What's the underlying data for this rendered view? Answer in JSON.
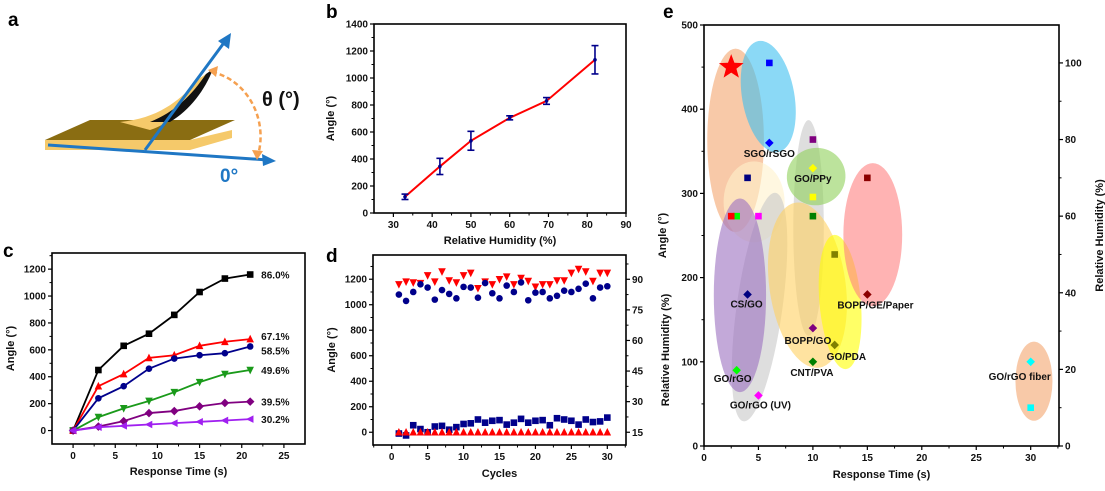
{
  "panel_letters": {
    "a": "a",
    "b": "b",
    "c": "c",
    "d": "d",
    "e": "e"
  },
  "diagram_a": {
    "theta_label": "θ (°)",
    "zero_label": "0°",
    "colors": {
      "film_top": "#9a7a1a",
      "film_edge": "#f5c96a",
      "axis": "#1f77c4",
      "arc": "#f5a050",
      "zero": "#1f77c4"
    }
  },
  "chart_data": [
    {
      "id": "b",
      "type": "line",
      "xlabel": "Relative Humidity (%)",
      "ylabel": "Angle (°)",
      "xlim": [
        25,
        90
      ],
      "ylim": [
        0,
        1400
      ],
      "x_ticks": [
        30,
        40,
        50,
        60,
        70,
        80,
        90
      ],
      "y_ticks": [
        0,
        200,
        400,
        600,
        800,
        1000,
        1200,
        1400
      ],
      "grid": false,
      "series": [
        {
          "x": [
            33,
            42,
            50,
            60,
            69.5,
            82
          ],
          "y": [
            120,
            345,
            535,
            705,
            830,
            1135
          ],
          "error": [
            20,
            60,
            70,
            15,
            25,
            105
          ],
          "line_color": "#ff0000",
          "marker_color": "#00008b"
        }
      ]
    },
    {
      "id": "c",
      "type": "line",
      "xlabel": "Response Time (s)",
      "ylabel": "Angle (°)",
      "xlim": [
        -2.5,
        27.5
      ],
      "ylim": [
        -100,
        1320
      ],
      "x_ticks": [
        0,
        5,
        10,
        15,
        20,
        25
      ],
      "y_ticks": [
        0,
        200,
        400,
        600,
        800,
        1000,
        1200
      ],
      "grid": false,
      "x": [
        0,
        3,
        6,
        9,
        12,
        15,
        18,
        21
      ],
      "series": [
        {
          "name": "86.0%",
          "marker": "square",
          "color": "#000000",
          "values": [
            0,
            450,
            630,
            720,
            860,
            1030,
            1130,
            1160
          ]
        },
        {
          "name": "67.1%",
          "marker": "triangle-up",
          "color": "#ff0000",
          "values": [
            0,
            330,
            420,
            540,
            560,
            630,
            660,
            680
          ]
        },
        {
          "name": "58.5%",
          "marker": "circle",
          "color": "#00008b",
          "values": [
            0,
            240,
            330,
            460,
            535,
            560,
            575,
            625
          ]
        },
        {
          "name": "49.6%",
          "marker": "triangle-down",
          "color": "#1a9a1a",
          "values": [
            0,
            100,
            165,
            220,
            285,
            360,
            420,
            450
          ]
        },
        {
          "name": "39.5%",
          "marker": "diamond",
          "color": "#800080",
          "values": [
            0,
            30,
            70,
            130,
            145,
            180,
            205,
            215
          ]
        },
        {
          "name": "30.2%",
          "marker": "triangle-left",
          "color": "#a020f0",
          "values": [
            0,
            25,
            35,
            45,
            55,
            65,
            75,
            85
          ]
        }
      ]
    },
    {
      "id": "d",
      "type": "scatter",
      "xlabel": "Cycles",
      "ylabel": "Angle (°)",
      "y2label": "Relative Humidity (%)",
      "xlim": [
        -2.6,
        32.6
      ],
      "ylim": [
        -100,
        1390
      ],
      "y2lim": [
        8.75,
        101.9
      ],
      "x_ticks": [
        0,
        5,
        10,
        15,
        20,
        25,
        30
      ],
      "y_ticks": [
        0,
        200,
        400,
        600,
        800,
        1000,
        1200
      ],
      "y2_ticks": [
        15,
        30,
        45,
        60,
        75,
        90
      ],
      "grid": false,
      "x": [
        1,
        2,
        3,
        4,
        5,
        6,
        7,
        8,
        9,
        10,
        11,
        12,
        13,
        14,
        15,
        16,
        17,
        18,
        19,
        20,
        21,
        22,
        23,
        24,
        25,
        26,
        27,
        28,
        29,
        30
      ],
      "series": [
        {
          "axis": "right",
          "marker": "triangle-down",
          "color": "#ff0000",
          "values": [
            87.5,
            88.8,
            88.4,
            88.1,
            91.9,
            88.8,
            93.8,
            89.4,
            88.4,
            91.9,
            93.1,
            85.6,
            88.8,
            87.5,
            90.0,
            91.3,
            87.5,
            90.6,
            89.1,
            86.3,
            87.5,
            87.5,
            89.4,
            89.4,
            93.1,
            95.0,
            93.8,
            89.1,
            93.1,
            93.1
          ]
        },
        {
          "axis": "left",
          "marker": "circle",
          "color": "#00008b",
          "values": [
            1080,
            1030,
            1100,
            1160,
            1135,
            1040,
            1115,
            1085,
            1050,
            1140,
            1135,
            1055,
            1170,
            1090,
            1050,
            1150,
            1100,
            1175,
            1035,
            1095,
            1100,
            1050,
            1070,
            1110,
            1100,
            1125,
            1165,
            1050,
            1135,
            1145
          ]
        },
        {
          "axis": "left",
          "marker": "square",
          "color": "#00008b",
          "values": [
            -10,
            -25,
            55,
            25,
            0,
            45,
            50,
            20,
            40,
            65,
            70,
            100,
            75,
            90,
            95,
            60,
            75,
            105,
            75,
            90,
            95,
            55,
            110,
            100,
            90,
            60,
            100,
            80,
            85,
            115
          ]
        },
        {
          "axis": "right",
          "marker": "triangle-up",
          "color": "#ff0000",
          "values": [
            15,
            15,
            15,
            15,
            15,
            15,
            15,
            15,
            15,
            15,
            15,
            15,
            15,
            15,
            15,
            15,
            15,
            15,
            15,
            15,
            15,
            15,
            15,
            15,
            15,
            15,
            15,
            15,
            15,
            15
          ]
        }
      ]
    },
    {
      "id": "e",
      "type": "scatter",
      "xlabel": "Response Time (s)",
      "ylabel": "Angle (°)",
      "y2label": "Relative Humidity (%)",
      "xlim": [
        0,
        32.6
      ],
      "ylim": [
        0,
        500
      ],
      "y2lim": [
        0,
        109.9
      ],
      "x_ticks": [
        0,
        5,
        10,
        15,
        20,
        25,
        30
      ],
      "y_ticks": [
        0,
        100,
        200,
        300,
        400,
        500
      ],
      "y2_ticks": [
        0,
        20,
        40,
        60,
        80,
        100
      ],
      "grid": false,
      "points": [
        {
          "x": 2.5,
          "y": 450,
          "axis": "left",
          "marker": "star",
          "color": "#ff0000",
          "label": ""
        },
        {
          "x": 6,
          "y": 360,
          "axis": "left",
          "marker": "diamond",
          "color": "#0000ff",
          "label": "SGO/rSGO"
        },
        {
          "x": 6,
          "y": 100,
          "axis": "right",
          "marker": "square",
          "color": "#0000ff",
          "label": ""
        },
        {
          "x": 10,
          "y": 330,
          "axis": "left",
          "marker": "diamond",
          "color": "#ffff00",
          "label": "GO/PPy"
        },
        {
          "x": 10,
          "y": 65,
          "axis": "right",
          "marker": "square",
          "color": "#ffff00",
          "label": ""
        },
        {
          "x": 10,
          "y": 80,
          "axis": "right",
          "marker": "square",
          "color": "#800080",
          "label": ""
        },
        {
          "x": 4,
          "y": 180,
          "axis": "left",
          "marker": "diamond",
          "color": "#000080",
          "label": "CS/GO"
        },
        {
          "x": 4,
          "y": 70,
          "axis": "right",
          "marker": "square",
          "color": "#000080",
          "label": ""
        },
        {
          "x": 15,
          "y": 180,
          "axis": "left",
          "marker": "diamond",
          "color": "#8b0000",
          "label": "BOPP/GE/Paper"
        },
        {
          "x": 15,
          "y": 70,
          "axis": "right",
          "marker": "square",
          "color": "#8b0000",
          "label": ""
        },
        {
          "x": 10,
          "y": 140,
          "axis": "left",
          "marker": "diamond",
          "color": "#800080",
          "label": "BOPP/GO"
        },
        {
          "x": 12,
          "y": 120,
          "axis": "left",
          "marker": "diamond",
          "color": "#808000",
          "label": "GO/PDA"
        },
        {
          "x": 12,
          "y": 50,
          "axis": "right",
          "marker": "square",
          "color": "#808000",
          "label": ""
        },
        {
          "x": 10,
          "y": 100,
          "axis": "left",
          "marker": "diamond",
          "color": "#008000",
          "label": "CNT/PVA"
        },
        {
          "x": 10,
          "y": 60,
          "axis": "right",
          "marker": "square",
          "color": "#008000",
          "label": ""
        },
        {
          "x": 3,
          "y": 90,
          "axis": "left",
          "marker": "diamond",
          "color": "#00ff00",
          "label": "GO/rGO"
        },
        {
          "x": 3,
          "y": 60,
          "axis": "right",
          "marker": "square",
          "color": "#00ff00",
          "label": ""
        },
        {
          "x": 2.5,
          "y": 60,
          "axis": "right",
          "marker": "square",
          "color": "#ff0000",
          "label": ""
        },
        {
          "x": 5,
          "y": 60,
          "axis": "left",
          "marker": "diamond",
          "color": "#ff00ff",
          "label": "GO/rGO (UV)"
        },
        {
          "x": 5,
          "y": 60,
          "axis": "right",
          "marker": "square",
          "color": "#ff00ff",
          "label": ""
        },
        {
          "x": 30,
          "y": 100,
          "axis": "left",
          "marker": "diamond",
          "color": "#00ffff",
          "label": "GO/rGO fiber"
        },
        {
          "x": 30,
          "y": 10,
          "axis": "right",
          "marker": "square",
          "color": "#00ffff",
          "label": ""
        }
      ]
    }
  ]
}
